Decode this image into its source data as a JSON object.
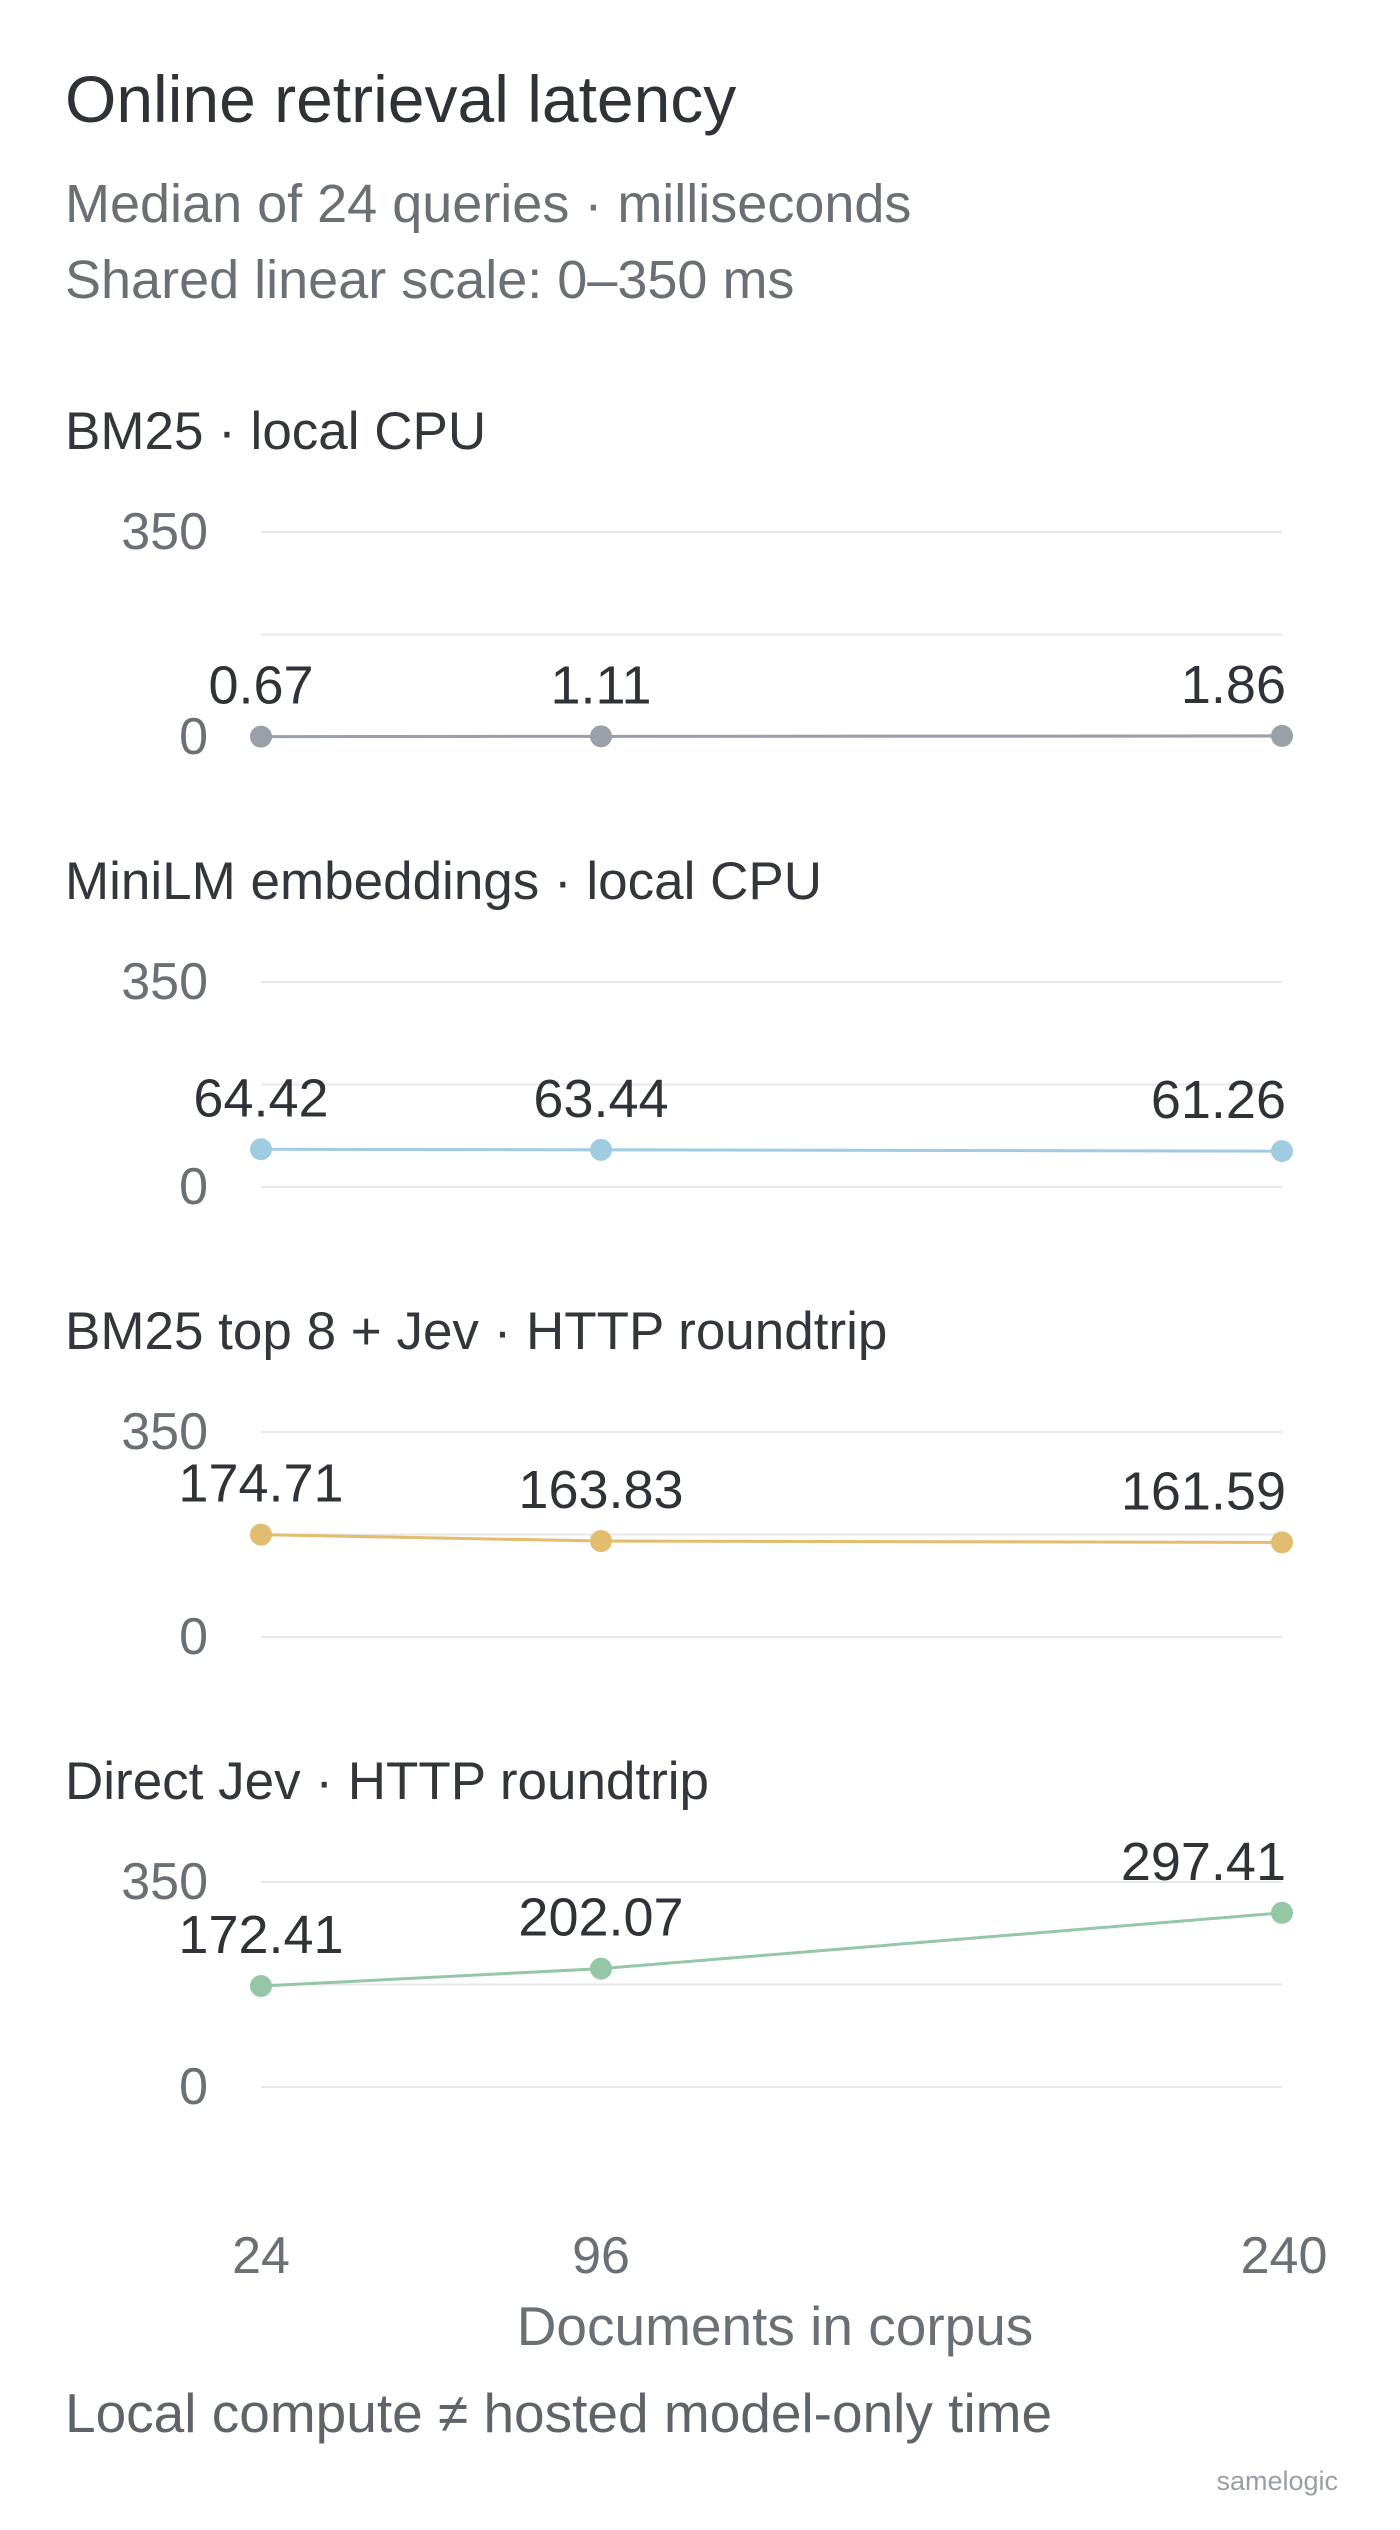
{
  "chart_data": {
    "type": "line",
    "title": "Online retrieval latency",
    "subtitle_lines": [
      "Median of 24 queries · milliseconds",
      "Shared linear scale: 0–350 ms"
    ],
    "x": [
      24,
      96,
      240
    ],
    "x_tick_labels": [
      "24",
      "96",
      "240"
    ],
    "xlabel": "Documents in corpus",
    "ylim": [
      0,
      350
    ],
    "y_tick_labels": [
      "0",
      "350"
    ],
    "grid": true,
    "note": "Local compute ≠ hosted model-only time",
    "brand": "samelogic",
    "series": [
      {
        "name": "BM25 · local CPU",
        "values": [
          0.67,
          1.11,
          1.86
        ],
        "labels": [
          "0.67",
          "1.11",
          "1.86"
        ],
        "color": "#9aa0a8"
      },
      {
        "name": "MiniLM embeddings · local CPU",
        "values": [
          64.42,
          63.44,
          61.26
        ],
        "labels": [
          "64.42",
          "63.44",
          "61.26"
        ],
        "color": "#9fcce1"
      },
      {
        "name": "BM25 top 8 + Jev · HTTP roundtrip",
        "values": [
          174.71,
          163.83,
          161.59
        ],
        "labels": [
          "174.71",
          "163.83",
          "161.59"
        ],
        "color": "#e2bc6f"
      },
      {
        "name": "Direct Jev · HTTP roundtrip",
        "values": [
          172.41,
          202.07,
          297.41
        ],
        "labels": [
          "172.41",
          "202.07",
          "297.41"
        ],
        "color": "#95c6a6"
      }
    ]
  }
}
